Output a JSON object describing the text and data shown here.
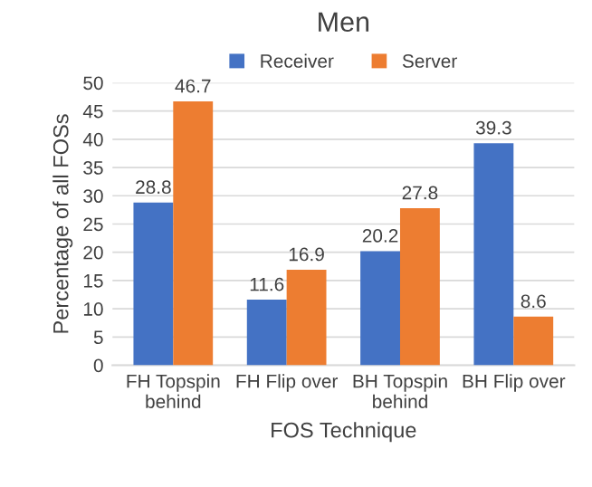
{
  "chart_data": {
    "type": "bar",
    "title": "Men",
    "xlabel": "FOS Technique",
    "ylabel": "Percentage of all FOSs",
    "categories": [
      "FH Topspin\nbehind",
      "FH Flip over",
      "BH Topspin\nbehind",
      "BH Flip over"
    ],
    "series": [
      {
        "name": "Receiver",
        "color": "#4472c4",
        "values": [
          28.8,
          11.6,
          20.2,
          39.3
        ]
      },
      {
        "name": "Server",
        "color": "#ed7d31",
        "values": [
          46.7,
          16.9,
          27.8,
          8.6
        ]
      }
    ],
    "ylim": [
      0,
      50
    ],
    "yticks": [
      0,
      5,
      10,
      15,
      20,
      25,
      30,
      35,
      40,
      45,
      50
    ],
    "grid": "y",
    "legend": "top",
    "data_labels": true
  }
}
